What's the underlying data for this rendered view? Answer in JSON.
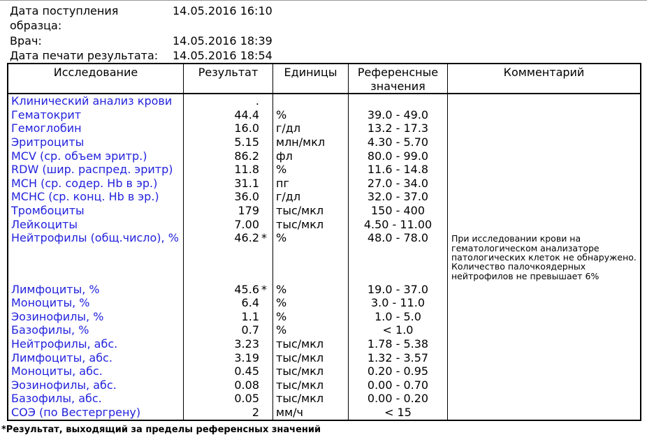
{
  "colors": {
    "test_name_blue": "#2222dd",
    "text": "#000000",
    "border": "#000000"
  },
  "meta": {
    "rows": [
      {
        "label": "Дата поступления образца:",
        "value": "14.05.2016 16:10"
      },
      {
        "label": "Врач:",
        "value": "14.05.2016 18:39"
      },
      {
        "label": "Дата печати результата:",
        "value": "14.05.2016 18:54"
      }
    ]
  },
  "table": {
    "headers": {
      "test": "Исследование",
      "result": "Результат",
      "units": "Единицы",
      "reference": "Референсные значения",
      "comment": "Комментарий"
    },
    "rows": [
      {
        "name": "Клинический анализ крови",
        "result": ".",
        "flag": "",
        "units": "",
        "ref": "",
        "comment": ""
      },
      {
        "name": "Гематокрит",
        "result": "44.4",
        "flag": "",
        "units": "%",
        "ref": "39.0 - 49.0",
        "comment": ""
      },
      {
        "name": "Гемоглобин",
        "result": "16.0",
        "flag": "",
        "units": "г/дл",
        "ref": "13.2 - 17.3",
        "comment": ""
      },
      {
        "name": "Эритроциты",
        "result": "5.15",
        "flag": "",
        "units": "млн/мкл",
        "ref": "4.30 - 5.70",
        "comment": ""
      },
      {
        "name": "MCV (ср. объем эритр.)",
        "result": "86.2",
        "flag": "",
        "units": "фл",
        "ref": "80.0 - 99.0",
        "comment": ""
      },
      {
        "name": "RDW (шир. распред. эритр)",
        "result": "11.8",
        "flag": "",
        "units": "%",
        "ref": "11.6 - 14.8",
        "comment": ""
      },
      {
        "name": "MCH (ср. содер. Hb в эр.)",
        "result": "31.1",
        "flag": "",
        "units": "пг",
        "ref": "27.0 - 34.0",
        "comment": ""
      },
      {
        "name": "MCHC (ср. конц. Hb в эр.)",
        "result": "36.0",
        "flag": "",
        "units": "г/дл",
        "ref": "32.0 - 37.0",
        "comment": ""
      },
      {
        "name": "Тромбоциты",
        "result": "179",
        "flag": "",
        "units": "тыс/мкл",
        "ref": "150 - 400",
        "comment": ""
      },
      {
        "name": "Лейкоциты",
        "result": "7.00",
        "flag": "",
        "units": "тыс/мкл",
        "ref": "4.50 - 11.00",
        "comment": ""
      },
      {
        "name": "Нейтрофилы (общ.число), %",
        "result": "46.2",
        "flag": "*",
        "units": "%",
        "ref": "48.0 - 78.0",
        "comment": "При исследовании крови на гематологическом анализаторе патологических клеток не обнаружено. Количество палочкоядерных нейтрофилов не превышает 6%"
      },
      {
        "name": "Лимфоциты, %",
        "result": "45.6",
        "flag": "*",
        "units": "%",
        "ref": "19.0 - 37.0",
        "comment": ""
      },
      {
        "name": "Моноциты, %",
        "result": "6.4",
        "flag": "",
        "units": "%",
        "ref": "3.0 - 11.0",
        "comment": ""
      },
      {
        "name": "Эозинофилы, %",
        "result": "1.1",
        "flag": "",
        "units": "%",
        "ref": "1.0 - 5.0",
        "comment": ""
      },
      {
        "name": "Базофилы, %",
        "result": "0.7",
        "flag": "",
        "units": "%",
        "ref": "< 1.0",
        "comment": ""
      },
      {
        "name": "Нейтрофилы, абс.",
        "result": "3.23",
        "flag": "",
        "units": "тыс/мкл",
        "ref": "1.78 - 5.38",
        "comment": ""
      },
      {
        "name": "Лимфоциты, абс.",
        "result": "3.19",
        "flag": "",
        "units": "тыс/мкл",
        "ref": "1.32 - 3.57",
        "comment": ""
      },
      {
        "name": "Моноциты, абс.",
        "result": "0.45",
        "flag": "",
        "units": "тыс/мкл",
        "ref": "0.20 - 0.95",
        "comment": ""
      },
      {
        "name": "Эозинофилы, абс.",
        "result": "0.08",
        "flag": "",
        "units": "тыс/мкл",
        "ref": "0.00 - 0.70",
        "comment": ""
      },
      {
        "name": "Базофилы, абс.",
        "result": "0.05",
        "flag": "",
        "units": "тыс/мкл",
        "ref": "0.00 - 0.20",
        "comment": ""
      },
      {
        "name": "СОЭ (по Вестергрену)",
        "result": "2",
        "flag": "",
        "units": "мм/ч",
        "ref": "< 15",
        "comment": ""
      }
    ]
  },
  "footnote": "*Результат, выходящий за пределы референсных значений"
}
